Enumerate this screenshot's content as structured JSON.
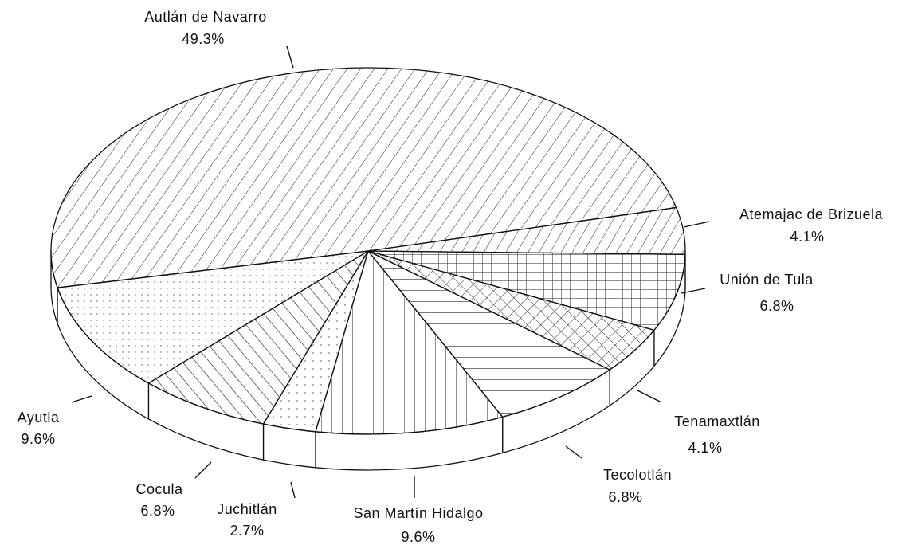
{
  "chart_data": {
    "type": "pie",
    "categories": [
      "Autlán de Navarro",
      "Atemajac de Brizuela",
      "Unión de Tula",
      "Tenamaxtlán",
      "Tecolotlán",
      "San Martín Hidalgo",
      "Juchitlán",
      "Cocula",
      "Ayutla"
    ],
    "values": [
      49.3,
      4.1,
      6.8,
      4.1,
      6.8,
      9.6,
      2.7,
      6.8,
      9.6
    ],
    "value_labels": [
      "49.3%",
      "4.1%",
      "6.8%",
      "4.1%",
      "6.8%",
      "9.6%",
      "2.7%",
      "6.8%",
      "9.6%"
    ]
  }
}
